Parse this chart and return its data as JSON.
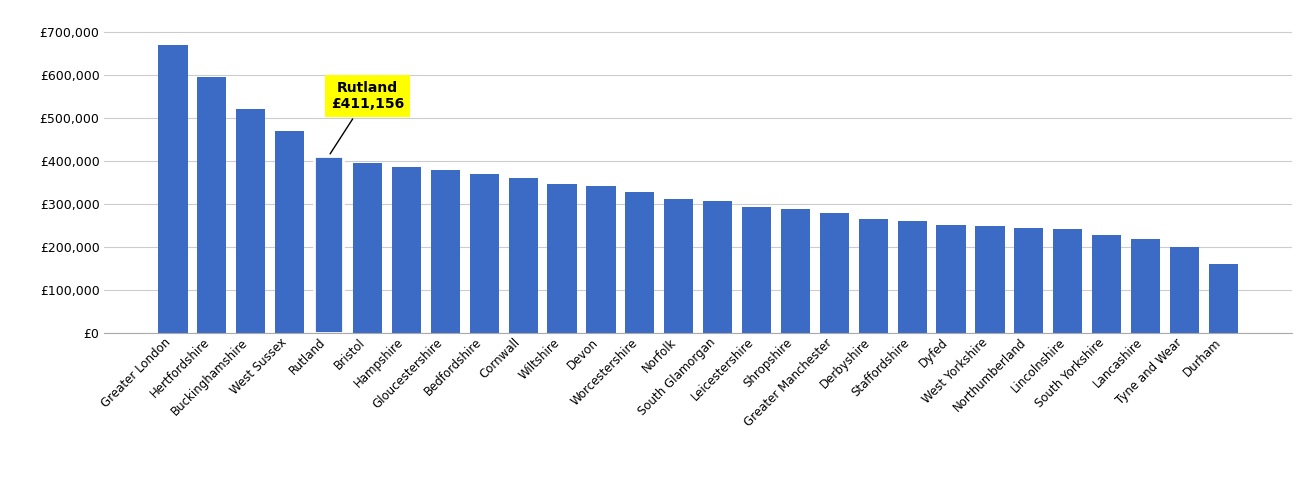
{
  "categories": [
    "Greater London",
    "Hertfordshire",
    "Buckinghamshire",
    "West Sussex",
    "Rutland",
    "Bristol",
    "Hampshire",
    "Gloucestershire",
    "Bedfordshire",
    "Cornwall",
    "Wiltshire",
    "Devon",
    "Worcestershire",
    "Norfolk",
    "South Glamorgan",
    "Leicestershire",
    "Shropshire",
    "Greater Manchester",
    "Derbyshire",
    "Staffordshire",
    "Dyfed",
    "West Yorkshire",
    "Northumberland",
    "Lincolnshire",
    "South Yorkshire",
    "Lancashire",
    "Tyne and Wear",
    "Durham"
  ],
  "values": [
    670000,
    595000,
    520000,
    470000,
    411156,
    395000,
    385000,
    380000,
    370000,
    360000,
    347000,
    342000,
    328000,
    312000,
    308000,
    293000,
    288000,
    280000,
    265000,
    260000,
    252000,
    250000,
    245000,
    243000,
    228000,
    218000,
    200000,
    160000
  ],
  "bar_color": "#3B6BC4",
  "highlight_index": 4,
  "highlight_outline_color": "#ffffff",
  "annotation_text": "Rutland\n£411,156",
  "annotation_bg": "#ffff00",
  "annotation_fontsize": 10,
  "annotation_fontweight": "bold",
  "ytick_labels": [
    "£0",
    "£100,000",
    "£200,000",
    "£300,000",
    "£400,000",
    "£500,000",
    "£600,000",
    "£700,000"
  ],
  "ytick_values": [
    0,
    100000,
    200000,
    300000,
    400000,
    500000,
    600000,
    700000
  ],
  "ylim": [
    0,
    740000
  ],
  "grid_color": "#cccccc",
  "background_color": "#ffffff",
  "bar_width": 0.75,
  "tick_fontsize": 9,
  "label_fontsize": 8.5
}
